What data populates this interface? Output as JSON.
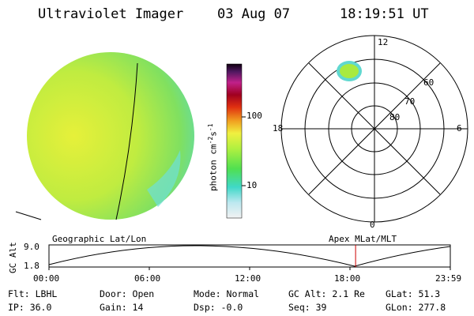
{
  "header": {
    "instrument": "Ultraviolet Imager",
    "date": "03 Aug 07",
    "time": "18:19:51 UT"
  },
  "colorbar": {
    "label": "photon cm",
    "label_sup1": "-2",
    "label_mid": "s",
    "label_sup2": "-1",
    "tick_high": "100",
    "tick_low": "10"
  },
  "polar": {
    "lat_labels": [
      "60",
      "70",
      "80"
    ],
    "mlt_top": "12",
    "mlt_bottom": "0",
    "mlt_left": "18",
    "mlt_right": "6"
  },
  "orbit": {
    "ylabel": "GC Alt",
    "y_top": "9.0",
    "y_bottom": "1.8",
    "left_title": "Geographic Lat/Lon",
    "right_title": "Apex MLat/MLT",
    "time_ticks": [
      "00:00",
      "06:00",
      "12:00",
      "18:00",
      "23:59"
    ],
    "current_time_fraction": 0.764
  },
  "params": {
    "flt": "Flt: LBHL",
    "ip": "IP: 36.0",
    "door": "Door: Open",
    "gain": "Gain: 14",
    "mode": "Mode: Normal",
    "dsp": "Dsp:  -0.0",
    "gcalt": "GC Alt: 2.1 Re",
    "seq": "Seq: 39",
    "glat": "GLat:  51.3",
    "glon": "GLon: 277.8"
  },
  "colors": {
    "earth_yellow": "#d8ee3a",
    "earth_green": "#7ee060",
    "earth_cyan": "#50d8d0",
    "current_marker": "#cc0000"
  }
}
